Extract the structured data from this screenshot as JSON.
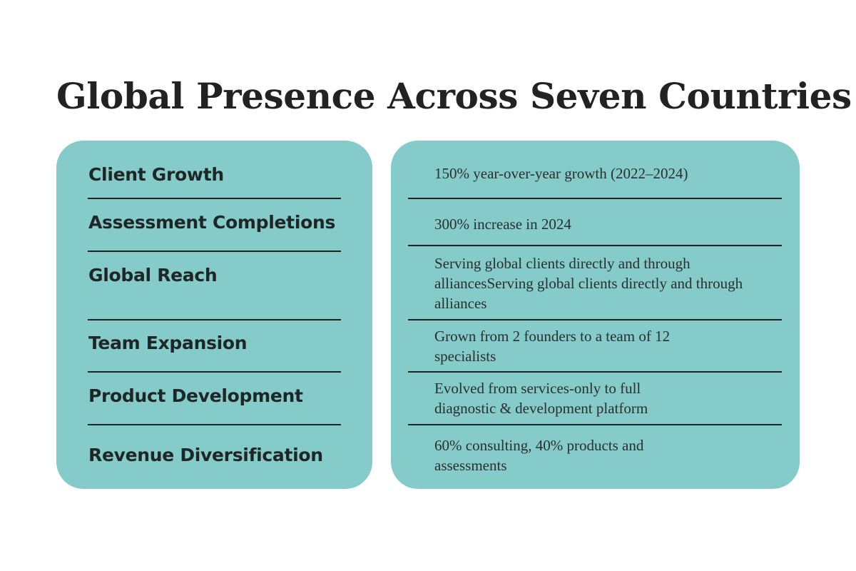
{
  "title": "Global Presence Across Seven Countries",
  "colors": {
    "panel_fill": "#85cbca",
    "text_dark": "#222222",
    "rule": "#1e2424",
    "background": "#ffffff"
  },
  "rows": [
    {
      "label": "Client Growth",
      "value": "150% year-over-year growth (2022–2024)"
    },
    {
      "label": "Assessment Completions",
      "value": "300% increase in 2024"
    },
    {
      "label": "Global Reach",
      "value": "Serving global clients directly and through alliancesServing global clients directly and through alliances"
    },
    {
      "label": "Team Expansion",
      "value": "Grown from 2 founders to a team of 12 specialists"
    },
    {
      "label": "Product Development",
      "value": "Evolved from services-only to full diagnostic & development platform"
    },
    {
      "label": "Revenue Diversification",
      "value": "60% consulting, 40% products and assessments"
    }
  ]
}
